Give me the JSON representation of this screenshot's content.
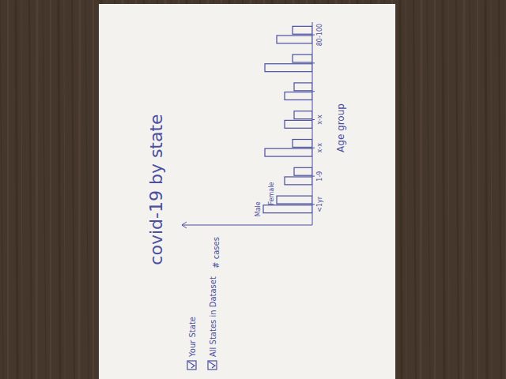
{
  "chart_data": {
    "type": "bar",
    "title": "covid-19 by state",
    "x_label": "Age group",
    "y_label": "# cases",
    "categories": [
      "<1yr",
      "1-9",
      "x-x",
      "x-x",
      null,
      null,
      "80-100"
    ],
    "series": [
      {
        "name": "Male",
        "color": "#4b4f9e",
        "values": [
          62,
          35,
          60,
          35,
          35,
          60,
          45
        ]
      },
      {
        "name": "Female",
        "color": "#4b4f9e",
        "values": [
          45,
          23,
          25,
          23,
          23,
          25,
          25
        ]
      }
    ],
    "ylim": [
      0,
      165
    ],
    "yticks": [],
    "tick_labels": "x",
    "controls": [
      "Your State",
      "All States in Dataset"
    ]
  }
}
